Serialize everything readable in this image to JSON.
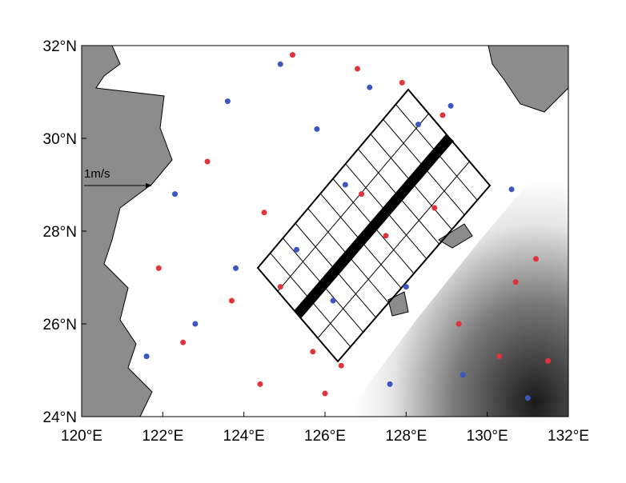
{
  "chart_data": {
    "type": "scatter",
    "xlim": [
      120,
      132
    ],
    "ylim": [
      24,
      32
    ],
    "xticks": [
      {
        "value": 120,
        "label": "120°E"
      },
      {
        "value": 122,
        "label": "122°E"
      },
      {
        "value": 124,
        "label": "124°E"
      },
      {
        "value": 126,
        "label": "126°E"
      },
      {
        "value": 128,
        "label": "128°E"
      },
      {
        "value": 130,
        "label": "130°E"
      },
      {
        "value": 132,
        "label": "132°E"
      }
    ],
    "yticks": [
      {
        "value": 24,
        "label": "24°N"
      },
      {
        "value": 26,
        "label": "26°N"
      },
      {
        "value": 28,
        "label": "28°N"
      },
      {
        "value": 30,
        "label": "30°N"
      },
      {
        "value": 32,
        "label": "32°N"
      }
    ],
    "annotation": "1m/s",
    "series": [
      {
        "color": "#e0333c",
        "x": [
          125.2,
          126.8,
          127.9,
          123.1,
          124.5,
          126.9,
          128.7,
          127.5,
          124.9,
          123.7,
          125.7,
          126.4,
          122.5,
          130.7,
          131.2,
          129.3,
          130.3,
          124.4,
          128.9,
          121.9,
          126.0,
          131.5
        ],
        "values": [
          31.8,
          31.5,
          31.2,
          29.5,
          28.4,
          28.8,
          28.5,
          27.9,
          26.8,
          26.5,
          25.4,
          25.1,
          25.6,
          26.9,
          27.4,
          26.0,
          25.3,
          24.7,
          30.5,
          27.2,
          24.5,
          25.2
        ]
      },
      {
        "color": "#3c56c0",
        "x": [
          123.6,
          124.9,
          128.3,
          129.1,
          126.5,
          125.3,
          122.8,
          121.6,
          127.6,
          129.4,
          131.0,
          123.8,
          126.2,
          128.0,
          130.6,
          127.1,
          122.3,
          125.8
        ],
        "values": [
          30.8,
          31.6,
          30.3,
          30.7,
          29.0,
          27.6,
          26.0,
          25.3,
          24.7,
          24.9,
          24.4,
          27.2,
          26.5,
          26.8,
          28.9,
          31.1,
          28.8,
          30.2
        ]
      }
    ]
  }
}
